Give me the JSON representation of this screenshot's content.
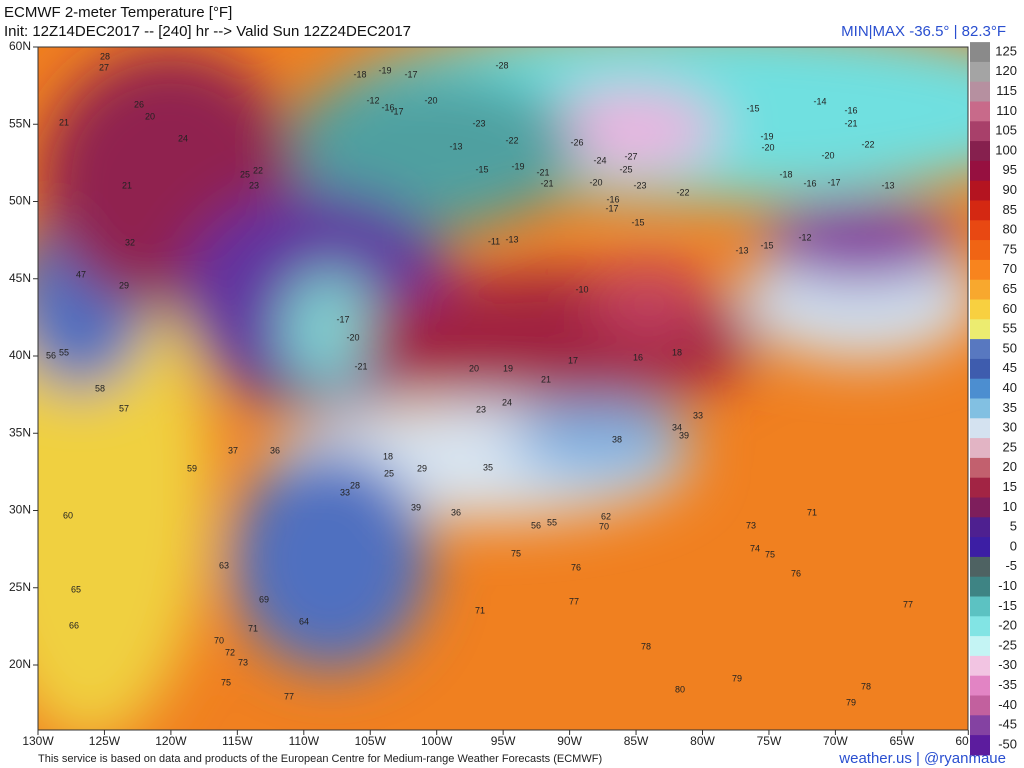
{
  "header": {
    "title": "ECMWF 2-meter Temperature [°F]",
    "init": "Init: 12Z14DEC2017 -- [240] hr --> Valid Sun 12Z24DEC2017",
    "minmax": "MIN|MAX -36.5° | 82.3°F"
  },
  "footer": {
    "credit": "This service is based on data and products of the European Centre for Medium-range Weather Forecasts (ECMWF)",
    "site": "weather.us | @ryanmaue"
  },
  "map": {
    "lon_ticks": [
      {
        "value": -130,
        "label": "130W"
      },
      {
        "value": -125,
        "label": "125W"
      },
      {
        "value": -120,
        "label": "120W"
      },
      {
        "value": -115,
        "label": "115W"
      },
      {
        "value": -110,
        "label": "110W"
      },
      {
        "value": -105,
        "label": "105W"
      },
      {
        "value": -100,
        "label": "100W"
      },
      {
        "value": -95,
        "label": "95W"
      },
      {
        "value": -90,
        "label": "90W"
      },
      {
        "value": -85,
        "label": "85W"
      },
      {
        "value": -80,
        "label": "80W"
      },
      {
        "value": -75,
        "label": "75W"
      },
      {
        "value": -70,
        "label": "70W"
      },
      {
        "value": -65,
        "label": "65W"
      },
      {
        "value": -60,
        "label": "60"
      }
    ],
    "lat_ticks": [
      {
        "value": 60,
        "label": "60N"
      },
      {
        "value": 55,
        "label": "55N"
      },
      {
        "value": 50,
        "label": "50N"
      },
      {
        "value": 45,
        "label": "45N"
      },
      {
        "value": 40,
        "label": "40N"
      },
      {
        "value": 35,
        "label": "35N"
      },
      {
        "value": 30,
        "label": "30N"
      },
      {
        "value": 25,
        "label": "25N"
      },
      {
        "value": 20,
        "label": "20N"
      }
    ],
    "labels": [
      28,
      27,
      26,
      20,
      21,
      24,
      25,
      22,
      23,
      21,
      32,
      47,
      29,
      56,
      55,
      58,
      57,
      60,
      63,
      65,
      66,
      70,
      71,
      72,
      73,
      75,
      77,
      69,
      64,
      36,
      37,
      59,
      28,
      33,
      39,
      36,
      35,
      29,
      25,
      18,
      20,
      19,
      21,
      17,
      16,
      18,
      23,
      24,
      33,
      38,
      34,
      39,
      56,
      55,
      62,
      70,
      75,
      76,
      77,
      71,
      73,
      74,
      75,
      76,
      71,
      77,
      78,
      80,
      79,
      78,
      79,
      -28,
      -20,
      -23,
      -22,
      -26,
      -24,
      -27,
      -25,
      -23,
      -22,
      -20,
      -19,
      -21,
      -21,
      -16,
      -17,
      -15,
      -13,
      -11,
      -10,
      -14,
      -16,
      -21,
      -15,
      -19,
      -20,
      -20,
      -22,
      -18,
      -16,
      -17,
      -13,
      -13,
      -15,
      -12,
      -17,
      -20,
      -21,
      -16,
      -17,
      -18,
      -19,
      -17,
      -12,
      -13,
      -15
    ]
  },
  "colorbar": {
    "ticks": [
      125,
      120,
      115,
      110,
      105,
      100,
      95,
      90,
      85,
      80,
      75,
      70,
      65,
      60,
      55,
      50,
      45,
      40,
      35,
      30,
      25,
      20,
      15,
      10,
      5,
      0,
      -5,
      -10,
      -15,
      -20,
      -25,
      -30,
      -35,
      -40,
      -45,
      -50
    ],
    "colors": [
      "#8a8a8a",
      "#a4a4a4",
      "#b690a0",
      "#c86a8a",
      "#a8406a",
      "#86204e",
      "#961040",
      "#b41420",
      "#d42812",
      "#e84812",
      "#f06414",
      "#f8841e",
      "#f8a82e",
      "#f8d040",
      "#ecec70",
      "#5878c0",
      "#3e5cae",
      "#4c8ed0",
      "#82c0e2",
      "#d4e2f0",
      "#e2b4c4",
      "#c2606e",
      "#a22444",
      "#7e1e5c",
      "#4e2090",
      "#3c1ea4",
      "#4e6262",
      "#3e8484",
      "#5cc2c2",
      "#82e4e4",
      "#c4f4f4",
      "#f2c4e2",
      "#e284c4",
      "#c2609e",
      "#8442a2",
      "#5c1c9e"
    ]
  }
}
